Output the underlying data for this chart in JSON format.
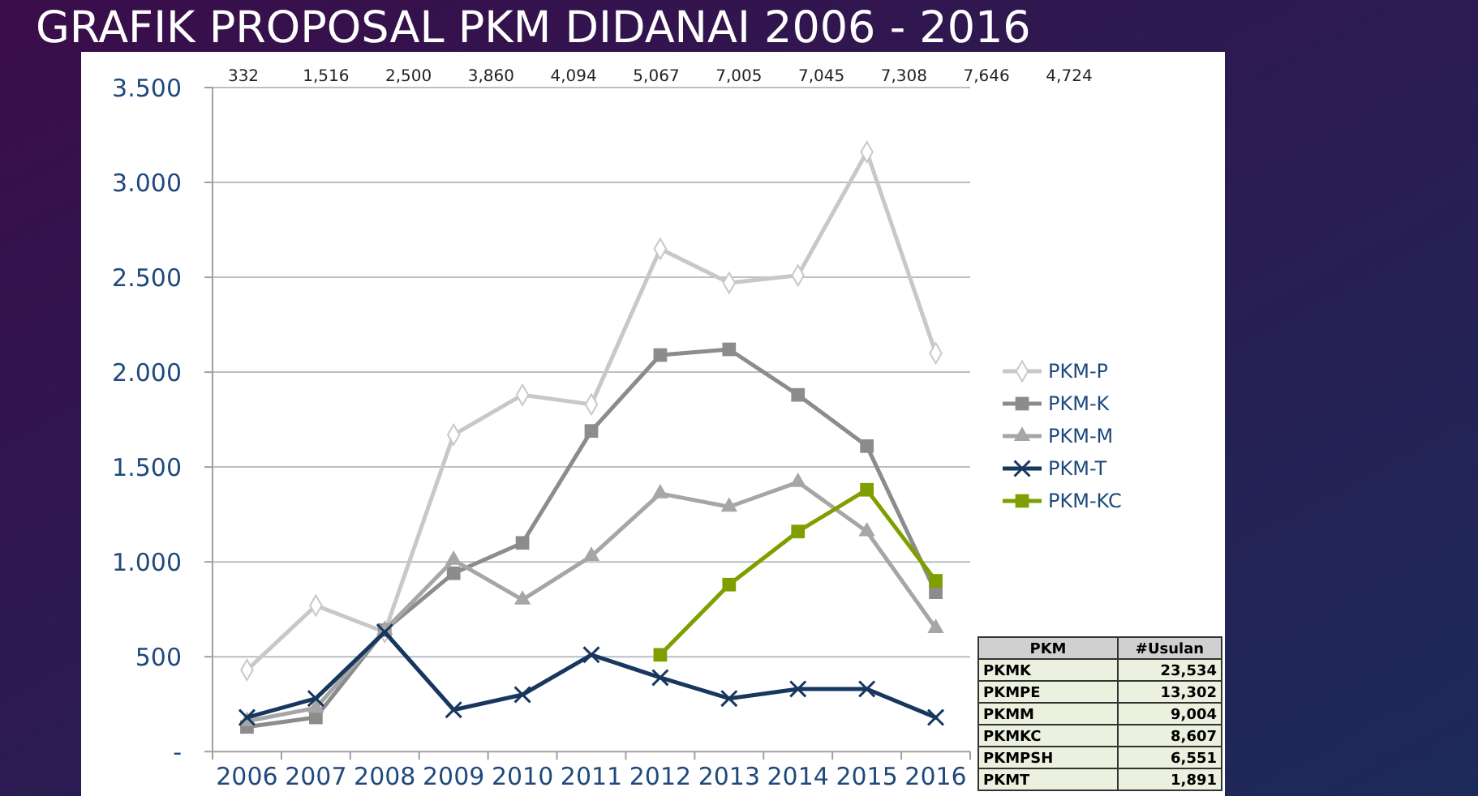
{
  "chart_data": [
    {
      "type": "line",
      "title": "GRAFIK PROPOSAL PKM DIDANAI 2006 - 2016",
      "categories": [
        "2006",
        "2007",
        "2008",
        "2009",
        "2010",
        "2011",
        "2012",
        "2013",
        "2014",
        "2015",
        "2016"
      ],
      "series": [
        {
          "name": "PKM-P",
          "color": "#c8c8c8",
          "marker": "diamond",
          "values": [
            430,
            770,
            630,
            1670,
            1880,
            1830,
            2650,
            2470,
            2510,
            3160,
            2100
          ]
        },
        {
          "name": "PKM-K",
          "color": "#8c8c8c",
          "marker": "square",
          "values": [
            130,
            180,
            640,
            940,
            1100,
            1690,
            2090,
            2120,
            1880,
            1610,
            840
          ]
        },
        {
          "name": "PKM-M",
          "color": "#a6a6a6",
          "marker": "triangle",
          "values": [
            160,
            230,
            640,
            1010,
            800,
            1030,
            1360,
            1290,
            1420,
            1160,
            650
          ]
        },
        {
          "name": "PKM-T",
          "color": "#17375e",
          "marker": "cross",
          "values": [
            180,
            280,
            630,
            220,
            300,
            510,
            390,
            280,
            330,
            330,
            180
          ]
        },
        {
          "name": "PKM-KC",
          "color": "#7f9f00",
          "marker": "square",
          "values": [
            null,
            null,
            null,
            null,
            null,
            null,
            510,
            880,
            1160,
            1380,
            900
          ]
        }
      ],
      "ylim": [
        0,
        3500
      ],
      "yticks": [
        {
          "value": 0,
          "label": "-"
        },
        {
          "value": 500,
          "label": "500"
        },
        {
          "value": 1000,
          "label": "1.000"
        },
        {
          "value": 1500,
          "label": "1.500"
        },
        {
          "value": 2000,
          "label": "2.000"
        },
        {
          "value": 2500,
          "label": "2.500"
        },
        {
          "value": 3000,
          "label": "3.000"
        },
        {
          "value": 3500,
          "label": "3.500"
        }
      ],
      "grid": "y",
      "legend": "right",
      "annotations": [
        "332",
        "1,516",
        "2,500",
        "3,860",
        "4,094",
        "5,067",
        "7,005",
        "7,045",
        "7,308",
        "7,646",
        "4,724"
      ]
    },
    {
      "type": "other",
      "annotations": [
        "PKM",
        "#Usulan",
        "PKMK",
        "23,534",
        "PKMPE",
        "13,302",
        "PKMM",
        "9,004",
        "PKMKC",
        "8,607",
        "PKMPSH",
        "6,551",
        "PKMT",
        "1,891"
      ]
    }
  ]
}
